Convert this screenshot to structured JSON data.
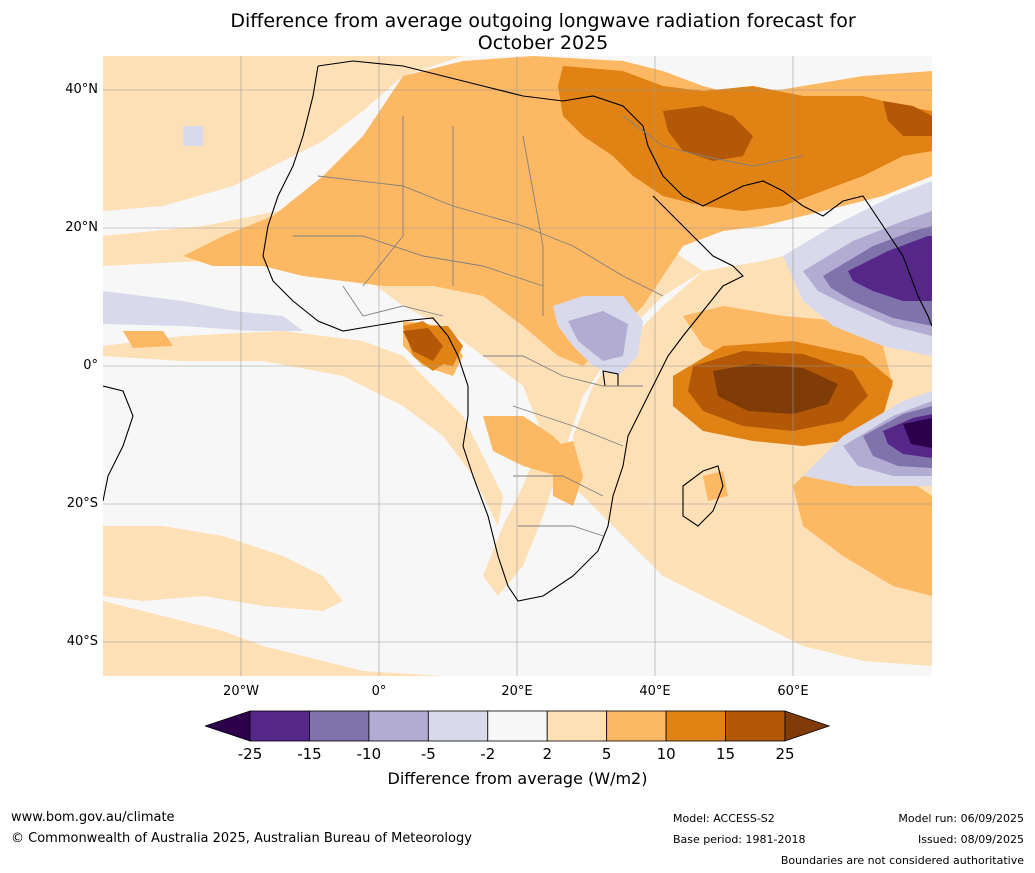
{
  "title_line1": "Difference from average outgoing longwave radiation forecast for",
  "title_line2": "October 2025",
  "lat_labels": [
    "40°N",
    "20°N",
    "0°",
    "20°S",
    "40°S"
  ],
  "lon_labels": [
    "20°W",
    "0°",
    "20°E",
    "40°E",
    "60°E"
  ],
  "colorbar": {
    "ticks": [
      "-25",
      "-15",
      "-10",
      "-5",
      "-2",
      "2",
      "5",
      "10",
      "15",
      "25"
    ],
    "colors": [
      "#2d004b",
      "#542788",
      "#8073ac",
      "#b2abd2",
      "#d8daeb",
      "#f7f7f7",
      "#fee0b6",
      "#fdb863",
      "#e08214",
      "#b35806",
      "#7f3b08"
    ],
    "label": "Difference from average (W/m2)"
  },
  "footer": {
    "website": "www.bom.gov.au/climate",
    "copyright": "© Commonwealth of Australia 2025, Australian Bureau of Meteorology",
    "model": "Model: ACCESS-S2",
    "base_period": "Base period: 1981-2018",
    "model_run": "Model run: 06/09/2025",
    "issued": "Issued: 08/09/2025",
    "disclaimer": "Boundaries are not considered authoritative"
  }
}
